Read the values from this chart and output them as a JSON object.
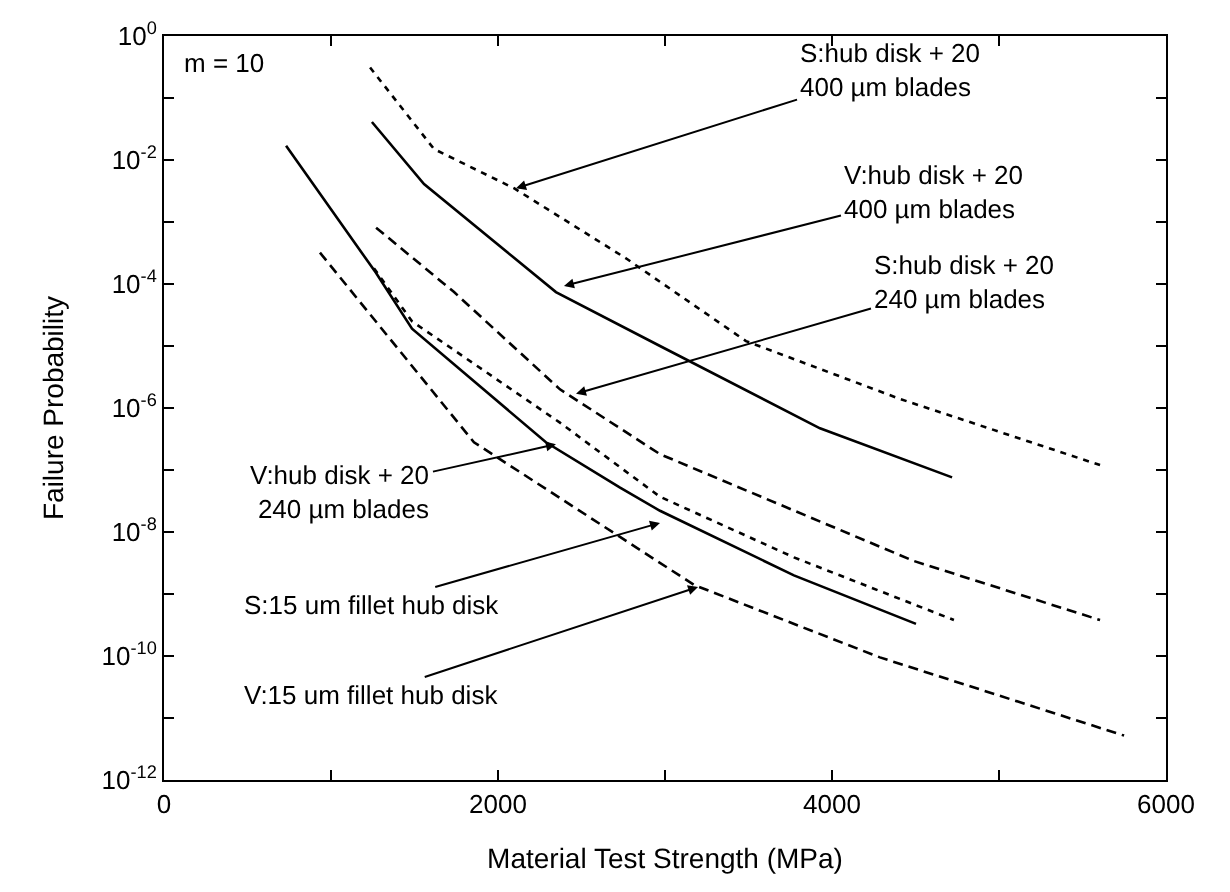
{
  "chart_data": {
    "type": "line",
    "xlabel": "Material Test Strength (MPa)",
    "ylabel": "Failure Probability",
    "log": "y",
    "grid": false,
    "xlim": [
      0,
      6000
    ],
    "ylim": [
      1e-12,
      1
    ],
    "xticks": [
      0,
      {
        "value": 1000,
        "label": null
      },
      2000,
      {
        "value": 3000,
        "label": null
      },
      4000,
      {
        "value": 5000,
        "label": null
      },
      6000
    ],
    "yticks": [
      {
        "value": 1e-12,
        "label": "10$^{-12}$"
      },
      {
        "value": 1e-11,
        "label": null
      },
      {
        "value": 1e-10,
        "label": "10$^{-10}$"
      },
      {
        "value": 1e-09,
        "label": null
      },
      {
        "value": 1e-08,
        "label": "10$^{-8}$"
      },
      {
        "value": 1e-07,
        "label": null
      },
      {
        "value": 1e-06,
        "label": "10$^{-6}$"
      },
      {
        "value": 1e-05,
        "label": null
      },
      {
        "value": 0.0001,
        "label": "10$^{-4}$"
      },
      {
        "value": 0.001,
        "label": null
      },
      {
        "value": 0.01,
        "label": "10$^{-2}$"
      },
      {
        "value": 0.1,
        "label": null
      },
      {
        "value": 1,
        "label": "10$^{0}$"
      }
    ],
    "series": [
      {
        "color": "#000000",
        "line_style": "dotted",
        "x": [
          1234,
          1617,
          2096,
          2766,
          3485,
          4407,
          5605
        ],
        "values": [
          0.31,
          0.015,
          0.0035,
          0.00026,
          1.2e-05,
          1.4e-06,
          1.2e-07
        ]
      },
      {
        "color": "#000000",
        "line_style": "solid",
        "x": [
          1245,
          1557,
          2347,
          2970,
          3928,
          4719
        ],
        "values": [
          0.041,
          0.0041,
          7.4e-05,
          1e-05,
          4.7e-07,
          7.6e-08
        ]
      },
      {
        "color": "#000000",
        "line_style": "dashed",
        "x": [
          1270,
          1737,
          2371,
          2970,
          4491,
          5605
        ],
        "values": [
          0.00081,
          7.4e-05,
          2e-06,
          1.8e-07,
          3.4e-09,
          3.8e-10
        ]
      },
      {
        "color": "#000000",
        "line_style": "solid",
        "x": [
          731,
          1270,
          1485,
          2287,
          2731,
          2970,
          3772,
          4503
        ],
        "values": [
          0.017,
          0.00015,
          1.9e-05,
          2.8e-07,
          5.2e-08,
          2.2e-08,
          2e-09,
          3.3e-10
        ]
      },
      {
        "color": "#000000",
        "line_style": "dotted",
        "x": [
          1257,
          1485,
          2371,
          2970,
          3772,
          4730
        ],
        "values": [
          0.00018,
          2.5e-05,
          5.8e-07,
          3.7e-08,
          3.9e-09,
          3.8e-10
        ]
      },
      {
        "color": "#000000",
        "line_style": "dashed",
        "x": [
          934,
          1856,
          3174,
          4287,
          5749
        ],
        "values": [
          0.00032,
          2.8e-07,
          1.4e-09,
          9.5e-11,
          5.2e-12
        ]
      }
    ],
    "annotations": [
      "m = 10",
      {
        "text": "S:hub disk + 20\n400 µm blades",
        "x": 2108,
        "y": 0.0035
      },
      {
        "text": "V:hub disk + 20\n400 µm blades",
        "x": 2395,
        "y": 9.3e-05
      },
      {
        "text": "S:hub disk + 20\n240 µm blades",
        "x": 2467,
        "y": 1.7e-06
      },
      {
        "text": "V:hub disk + 20\n240 µm blades",
        "x": 2347,
        "y": 2.6e-07
      },
      {
        "text": "S:15 um fillet hub disk",
        "x": 2970,
        "y": 1.4e-08
      },
      {
        "text": "V:15 um fillet hub disk",
        "x": 3198,
        "y": 1.3e-09
      }
    ]
  }
}
